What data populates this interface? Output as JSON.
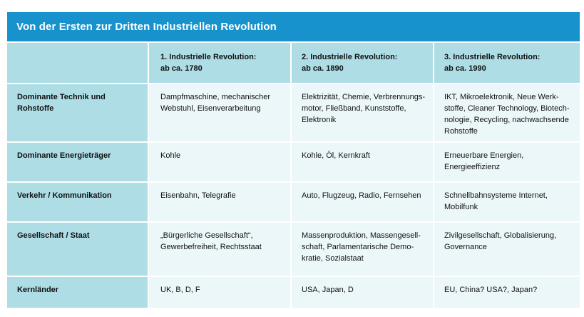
{
  "title": "Von der Ersten zur Dritten Industriellen Revolution",
  "columns": [
    {
      "line1": "1. Industrielle Revolution:",
      "line2": "ab ca. 1780"
    },
    {
      "line1": "2. Industrielle Revolution:",
      "line2": "ab ca. 1890"
    },
    {
      "line1": "3. Industrielle Revolution:",
      "line2": "ab ca. 1990"
    }
  ],
  "rows": [
    {
      "label": "Dominante Technik und Rohstoffe",
      "cells": [
        [
          "Dampfmaschine, mechanischer",
          "Webstuhl, Eisenverarbeitung"
        ],
        [
          "Elektrizität, Chemie, Verbrennungs-",
          "motor, Fließband, Kunststoffe,",
          "Elektronik"
        ],
        [
          "IKT, Mikroelektronik, Neue Werk-",
          "stoffe, Cleaner Technology, Biotech-",
          "nologie, Recycling, nachwachsende",
          "Rohstoffe"
        ]
      ]
    },
    {
      "label": "Dominante Energieträger",
      "cells": [
        [
          "Kohle"
        ],
        [
          "Kohle, Öl, Kernkraft"
        ],
        [
          "Erneuerbare Energien,",
          "Energieeffizienz"
        ]
      ]
    },
    {
      "label": "Verkehr / Kommunikation",
      "cells": [
        [
          "Eisenbahn, Telegrafie"
        ],
        [
          "Auto, Flugzeug, Radio, Fernsehen"
        ],
        [
          "Schnellbahnsysteme Internet,",
          "Mobilfunk"
        ]
      ]
    },
    {
      "label": "Gesellschaft / Staat",
      "cells": [
        [
          "„Bürgerliche Gesellschaft“,",
          "Gewerbefreiheit, Rechtsstaat"
        ],
        [
          "Massenproduktion, Massengesell-",
          "schaft, Parlamentarische Demo-",
          "kratie, Sozialstaat"
        ],
        [
          "Zivilgesellschaft, Globalisierung,",
          "Governance"
        ]
      ]
    },
    {
      "label": "Kernländer",
      "cells": [
        [
          "UK, B, D, F"
        ],
        [
          "USA, Japan, D"
        ],
        [
          "EU, China? USA?, Japan?"
        ]
      ]
    }
  ],
  "colors": {
    "title_bar": "#1792cc",
    "header_cells": "#aedde6",
    "body_cells": "#ecf7f9"
  }
}
